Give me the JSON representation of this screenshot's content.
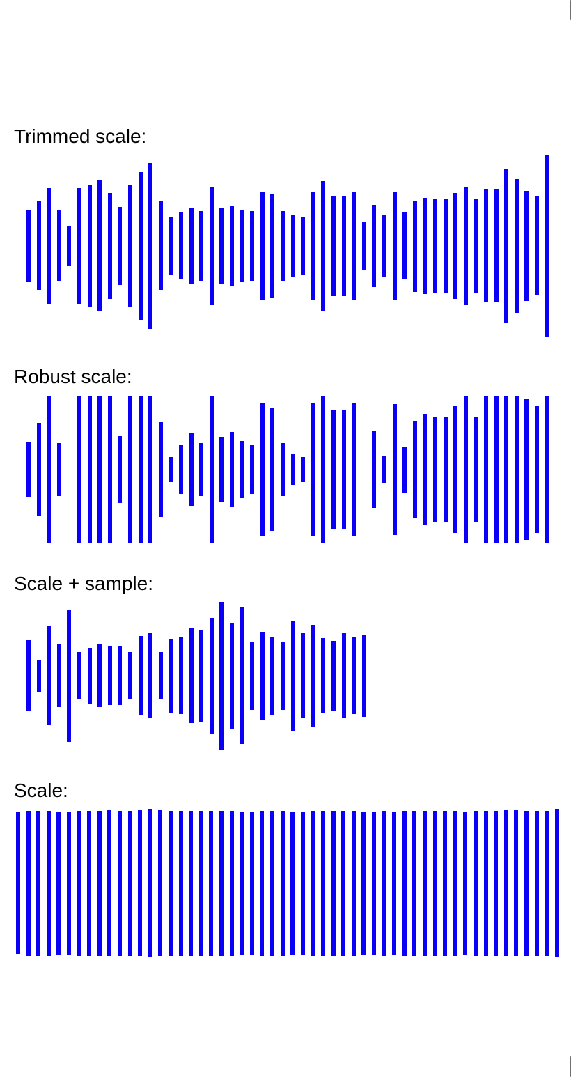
{
  "accent_color": "#0a00f5",
  "waveforms": [
    {
      "label": "Trimmed scale:",
      "amplitudes": [
        0.4,
        0.49,
        0.63,
        0.39,
        0.22,
        0.63,
        0.67,
        0.72,
        0.58,
        0.43,
        0.67,
        0.81,
        0.91,
        0.49,
        0.32,
        0.37,
        0.41,
        0.38,
        0.65,
        0.42,
        0.44,
        0.4,
        0.38,
        0.59,
        0.57,
        0.38,
        0.34,
        0.32,
        0.59,
        0.71,
        0.55,
        0.55,
        0.59,
        0.26,
        0.45,
        0.34,
        0.59,
        0.37,
        0.5,
        0.53,
        0.52,
        0.52,
        0.58,
        0.65,
        0.52,
        0.62,
        0.62,
        0.84,
        0.73,
        0.6,
        0.54,
        1.0
      ]
    },
    {
      "label": "Robust scale:",
      "amplitudes": [
        0.38,
        0.63,
        1.0,
        0.36,
        0,
        1.0,
        1.0,
        1.0,
        1.0,
        0.45,
        1.0,
        1.0,
        1.0,
        0.64,
        0.17,
        0.33,
        0.5,
        0.36,
        1.0,
        0.44,
        0.51,
        0.39,
        0.33,
        0.91,
        0.83,
        0.36,
        0.21,
        0.17,
        0.9,
        1.0,
        0.8,
        0.81,
        0.9,
        0,
        0.52,
        0.19,
        0.89,
        0.31,
        0.65,
        0.75,
        0.72,
        0.71,
        0.86,
        1.0,
        0.72,
        1.0,
        1.0,
        1.0,
        1.0,
        0.95,
        0.86,
        1.0
      ]
    },
    {
      "label": "Scale + sample:",
      "amplitudes": [
        0.48,
        0.22,
        0.67,
        0.42,
        0.9,
        0.32,
        0.38,
        0.42,
        0.4,
        0.4,
        0.32,
        0.54,
        0.58,
        0.32,
        0.5,
        0.52,
        0.64,
        0.62,
        0.78,
        1.0,
        0.72,
        0.92,
        0.46,
        0.59,
        0.53,
        0.46,
        0.75,
        0.58,
        0.69,
        0.51,
        0.47,
        0.58,
        0.52,
        0.56
      ]
    },
    {
      "label": "Scale:",
      "amplitudes": [
        0.96,
        0.98,
        0.98,
        0.98,
        0.97,
        0.97,
        0.98,
        0.98,
        0.98,
        0.99,
        0.98,
        0.98,
        0.99,
        1.0,
        0.99,
        0.98,
        0.98,
        0.98,
        0.98,
        0.98,
        0.98,
        0.98,
        0.97,
        0.97,
        0.98,
        0.98,
        0.98,
        0.97,
        0.97,
        0.98,
        0.98,
        0.98,
        0.98,
        0.98,
        0.97,
        0.97,
        0.98,
        0.97,
        0.98,
        0.98,
        0.98,
        0.98,
        0.98,
        0.98,
        0.97,
        0.98,
        0.98,
        0.98,
        0.99,
        0.99,
        0.98,
        0.98,
        0.98,
        1.0
      ]
    }
  ]
}
